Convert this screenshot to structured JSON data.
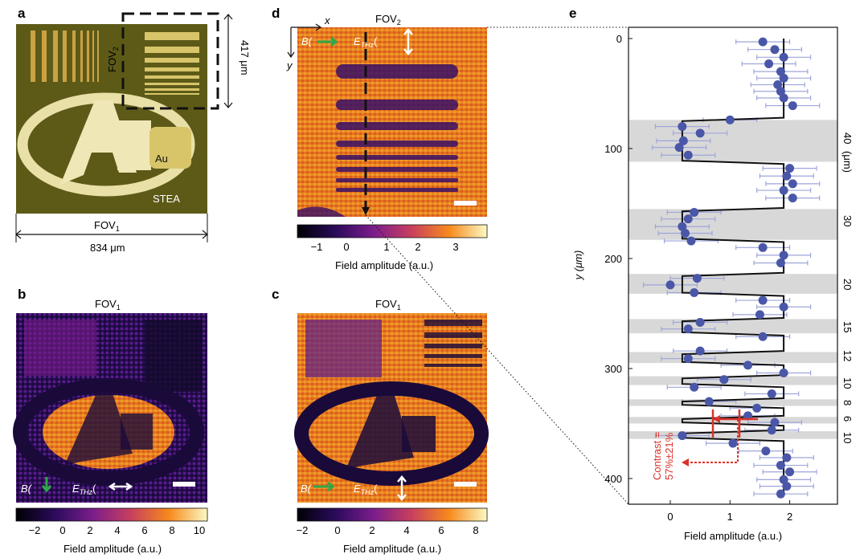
{
  "panels": {
    "a": {
      "letter": "a",
      "fov2_label": "FOV",
      "fov2_sub": "2",
      "au_label": "Au",
      "stea_label": "STEA",
      "fov1_label": "FOV",
      "fov1_sub": "1",
      "width_label": "834 μm",
      "height_label": "417 μm"
    },
    "b": {
      "letter": "b",
      "title": "FOV",
      "title_sub": "1",
      "b_label": "B(",
      "e_label": "E",
      "e_sub": "THz",
      "e_paren": "(",
      "colorbar_ticks": [
        "−2",
        "0",
        "2",
        "4",
        "6",
        "8",
        "10"
      ],
      "colorbar_label": "Field amplitude (a.u.)"
    },
    "c": {
      "letter": "c",
      "title": "FOV",
      "title_sub": "1",
      "b_label": "B(",
      "e_label": "E",
      "e_sub": "THz",
      "e_paren": "(",
      "colorbar_ticks": [
        "−2",
        "0",
        "2",
        "4",
        "6",
        "8"
      ],
      "colorbar_label": "Field amplitude (a.u.)"
    },
    "d": {
      "letter": "d",
      "title": "FOV",
      "title_sub": "2",
      "axis_x": "x",
      "axis_y": "y",
      "b_label": "B(",
      "e_label": "E",
      "e_sub": "THz",
      "e_paren": "(",
      "colorbar_ticks": [
        "−1",
        "0",
        "1",
        "2",
        "3"
      ],
      "colorbar_label": "Field amplitude (a.u.)"
    },
    "e": {
      "letter": "e",
      "contrast_line1": "Contrast =",
      "contrast_line2": "57%±21%",
      "right_labels": [
        "40",
        "(μm)",
        "30",
        "20",
        "15",
        "12",
        "10",
        "8",
        "6",
        "10"
      ]
    }
  },
  "colors": {
    "inferno_dark": "#1a0a3a",
    "inferno_purple": "#5b1d8a",
    "inferno_orange": "#e8761a",
    "inferno_yellow": "#f6d04a",
    "gold": "#c9a243",
    "green_arrow": "#2fa84a",
    "marker": "#4a57a8",
    "errorbar": "#9ea6d9",
    "band": "#d8d8d8",
    "contrast_red": "#d9322a"
  },
  "chart_data": {
    "type": "scatter",
    "xlabel": "Field amplitude (a.u.)",
    "ylabel": "y (μm)",
    "xlim": [
      -0.7,
      2.8
    ],
    "ylim": [
      0,
      420
    ],
    "x_ticks": [
      0,
      1,
      2
    ],
    "y_ticks": [
      0,
      100,
      200,
      300,
      400
    ],
    "inverted_y": true,
    "points": [
      {
        "y": 3,
        "x": 1.55
      },
      {
        "y": 10,
        "x": 1.75
      },
      {
        "y": 17,
        "x": 1.9
      },
      {
        "y": 23,
        "x": 1.65
      },
      {
        "y": 30,
        "x": 1.85
      },
      {
        "y": 36,
        "x": 1.9
      },
      {
        "y": 42,
        "x": 1.8
      },
      {
        "y": 48,
        "x": 1.85
      },
      {
        "y": 54,
        "x": 1.9
      },
      {
        "y": 61,
        "x": 2.05
      },
      {
        "y": 74,
        "x": 1.0
      },
      {
        "y": 80,
        "x": 0.2
      },
      {
        "y": 86,
        "x": 0.5
      },
      {
        "y": 93,
        "x": 0.22
      },
      {
        "y": 99,
        "x": 0.15
      },
      {
        "y": 106,
        "x": 0.3
      },
      {
        "y": 118,
        "x": 2.0
      },
      {
        "y": 125,
        "x": 1.95
      },
      {
        "y": 132,
        "x": 2.05
      },
      {
        "y": 138,
        "x": 1.9
      },
      {
        "y": 145,
        "x": 2.05
      },
      {
        "y": 158,
        "x": 0.4
      },
      {
        "y": 164,
        "x": 0.3
      },
      {
        "y": 171,
        "x": 0.2
      },
      {
        "y": 177,
        "x": 0.25
      },
      {
        "y": 184,
        "x": 0.35
      },
      {
        "y": 190,
        "x": 1.55
      },
      {
        "y": 197,
        "x": 1.9
      },
      {
        "y": 204,
        "x": 1.85
      },
      {
        "y": 218,
        "x": 0.45
      },
      {
        "y": 224,
        "x": 0.0
      },
      {
        "y": 231,
        "x": 0.4
      },
      {
        "y": 238,
        "x": 1.55
      },
      {
        "y": 244,
        "x": 1.9
      },
      {
        "y": 251,
        "x": 1.5
      },
      {
        "y": 258,
        "x": 0.5
      },
      {
        "y": 264,
        "x": 0.3
      },
      {
        "y": 271,
        "x": 1.55
      },
      {
        "y": 284,
        "x": 0.5
      },
      {
        "y": 291,
        "x": 0.3
      },
      {
        "y": 297,
        "x": 1.3
      },
      {
        "y": 304,
        "x": 1.9
      },
      {
        "y": 310,
        "x": 0.9
      },
      {
        "y": 317,
        "x": 0.4
      },
      {
        "y": 323,
        "x": 1.7
      },
      {
        "y": 330,
        "x": 0.65
      },
      {
        "y": 336,
        "x": 1.45
      },
      {
        "y": 343,
        "x": 1.3
      },
      {
        "y": 349,
        "x": 1.75
      },
      {
        "y": 356,
        "x": 1.7
      },
      {
        "y": 361,
        "x": 0.2
      },
      {
        "y": 368,
        "x": 1.05
      },
      {
        "y": 375,
        "x": 1.6
      },
      {
        "y": 381,
        "x": 1.95
      },
      {
        "y": 388,
        "x": 1.85
      },
      {
        "y": 394,
        "x": 2.0
      },
      {
        "y": 401,
        "x": 1.9
      },
      {
        "y": 407,
        "x": 1.95
      },
      {
        "y": 414,
        "x": 1.85
      }
    ],
    "error_half_width": 0.45,
    "bands": [
      [
        74,
        112
      ],
      [
        155,
        183
      ],
      [
        214,
        232
      ],
      [
        255,
        268
      ],
      [
        285,
        295
      ],
      [
        307,
        315
      ],
      [
        328,
        334
      ],
      [
        344,
        350
      ],
      [
        357,
        364
      ]
    ],
    "step_profile": [
      [
        0,
        1.9
      ],
      [
        72,
        1.9
      ],
      [
        75,
        0.2
      ],
      [
        111,
        0.2
      ],
      [
        114,
        1.9
      ],
      [
        154,
        1.9
      ],
      [
        157,
        0.2
      ],
      [
        182,
        0.2
      ],
      [
        185,
        1.9
      ],
      [
        213,
        1.9
      ],
      [
        216,
        0.2
      ],
      [
        231,
        0.2
      ],
      [
        234,
        1.9
      ],
      [
        254,
        1.9
      ],
      [
        257,
        0.2
      ],
      [
        267,
        0.2
      ],
      [
        270,
        1.9
      ],
      [
        284,
        1.9
      ],
      [
        287,
        0.2
      ],
      [
        294,
        0.2
      ],
      [
        297,
        1.9
      ],
      [
        306,
        1.9
      ],
      [
        309,
        0.2
      ],
      [
        314,
        0.2
      ],
      [
        317,
        1.9
      ],
      [
        327,
        1.9
      ],
      [
        330,
        0.2
      ],
      [
        333,
        0.2
      ],
      [
        336,
        1.9
      ],
      [
        343,
        1.9
      ],
      [
        346,
        0.2
      ],
      [
        349,
        0.2
      ],
      [
        352,
        1.9
      ],
      [
        356,
        1.9
      ],
      [
        359,
        0.2
      ],
      [
        363,
        0.2
      ],
      [
        366,
        1.9
      ],
      [
        420,
        1.9
      ]
    ]
  }
}
